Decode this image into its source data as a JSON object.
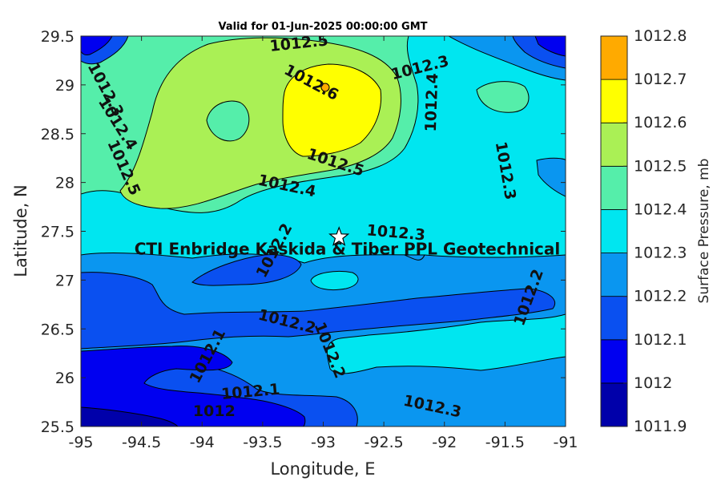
{
  "chart_data": {
    "type": "contour",
    "title": "Valid for 01-Jun-2025 00:00:00 GMT",
    "xlabel": "Longitude, E",
    "ylabel": "Latitude, N",
    "xlim": [
      -95,
      -91
    ],
    "ylim": [
      25.5,
      29.5
    ],
    "x_ticks": [
      "-95",
      "-94.5",
      "-94",
      "-93.5",
      "-93",
      "-92.5",
      "-92",
      "-91.5",
      "-91"
    ],
    "y_ticks": [
      "29.5",
      "29",
      "28.5",
      "28",
      "27.5",
      "27",
      "26.5",
      "26",
      "25.5"
    ],
    "colorbar": {
      "label": "Surface Pressure, mb",
      "levels": [
        1011.9,
        1012,
        1012.1,
        1012.2,
        1012.3,
        1012.4,
        1012.5,
        1012.6,
        1012.7,
        1012.8
      ],
      "tick_labels": [
        "1012.8",
        "1012.7",
        "1012.6",
        "1012.5",
        "1012.4",
        "1012.3",
        "1012.2",
        "1012.1",
        "1012",
        "1011.9"
      ],
      "colors": [
        "#0000aa",
        "#0000f0",
        "#0a50f0",
        "#0a96f0",
        "#00e6f0",
        "#55eeaa",
        "#aaf055",
        "#ffff00",
        "#ffaa00",
        "#ff5500"
      ]
    },
    "contour_labels": [
      {
        "text": "1012.5",
        "lon": -93.2,
        "lat": 29.42,
        "angle": 6
      },
      {
        "text": "1012.6",
        "lon": -93.1,
        "lat": 29.02,
        "angle": -28
      },
      {
        "text": "1012.3",
        "lon": -92.2,
        "lat": 29.17,
        "angle": 14
      },
      {
        "text": "1012.4",
        "lon": -92.1,
        "lat": 28.82,
        "angle": 88
      },
      {
        "text": "1012.3",
        "lon": -94.8,
        "lat": 28.95,
        "angle": -62
      },
      {
        "text": "1012.4",
        "lon": -94.7,
        "lat": 28.6,
        "angle": -58
      },
      {
        "text": "1012.5",
        "lon": -94.65,
        "lat": 28.15,
        "angle": -66
      },
      {
        "text": "1012.5",
        "lon": -92.9,
        "lat": 28.2,
        "angle": -18
      },
      {
        "text": "1012.4",
        "lon": -93.3,
        "lat": 27.96,
        "angle": -12
      },
      {
        "text": "1012.3",
        "lon": -91.5,
        "lat": 28.12,
        "angle": -80
      },
      {
        "text": "1012.3",
        "lon": -92.4,
        "lat": 27.48,
        "angle": -5
      },
      {
        "text": "1012.2",
        "lon": -93.4,
        "lat": 27.3,
        "angle": 62
      },
      {
        "text": "1012.2",
        "lon": -91.3,
        "lat": 26.82,
        "angle": 70
      },
      {
        "text": "1012.2",
        "lon": -93.3,
        "lat": 26.57,
        "angle": -14
      },
      {
        "text": "1012.2",
        "lon": -92.95,
        "lat": 26.28,
        "angle": -68
      },
      {
        "text": "1012.1",
        "lon": -93.95,
        "lat": 26.22,
        "angle": 62
      },
      {
        "text": "1012.1",
        "lon": -93.6,
        "lat": 25.85,
        "angle": 5
      },
      {
        "text": "1012",
        "lon": -93.9,
        "lat": 25.65,
        "angle": 0
      },
      {
        "text": "1012.3",
        "lon": -92.1,
        "lat": 25.7,
        "angle": -12
      }
    ],
    "annotations": [
      {
        "text": "CTI Enbridge  Kaskida & Tiber PPL Geotechnical",
        "lon": -93.0,
        "lat": 27.32
      }
    ],
    "site_marker": {
      "lon": -92.87,
      "lat": 27.44,
      "symbol": "star"
    }
  }
}
